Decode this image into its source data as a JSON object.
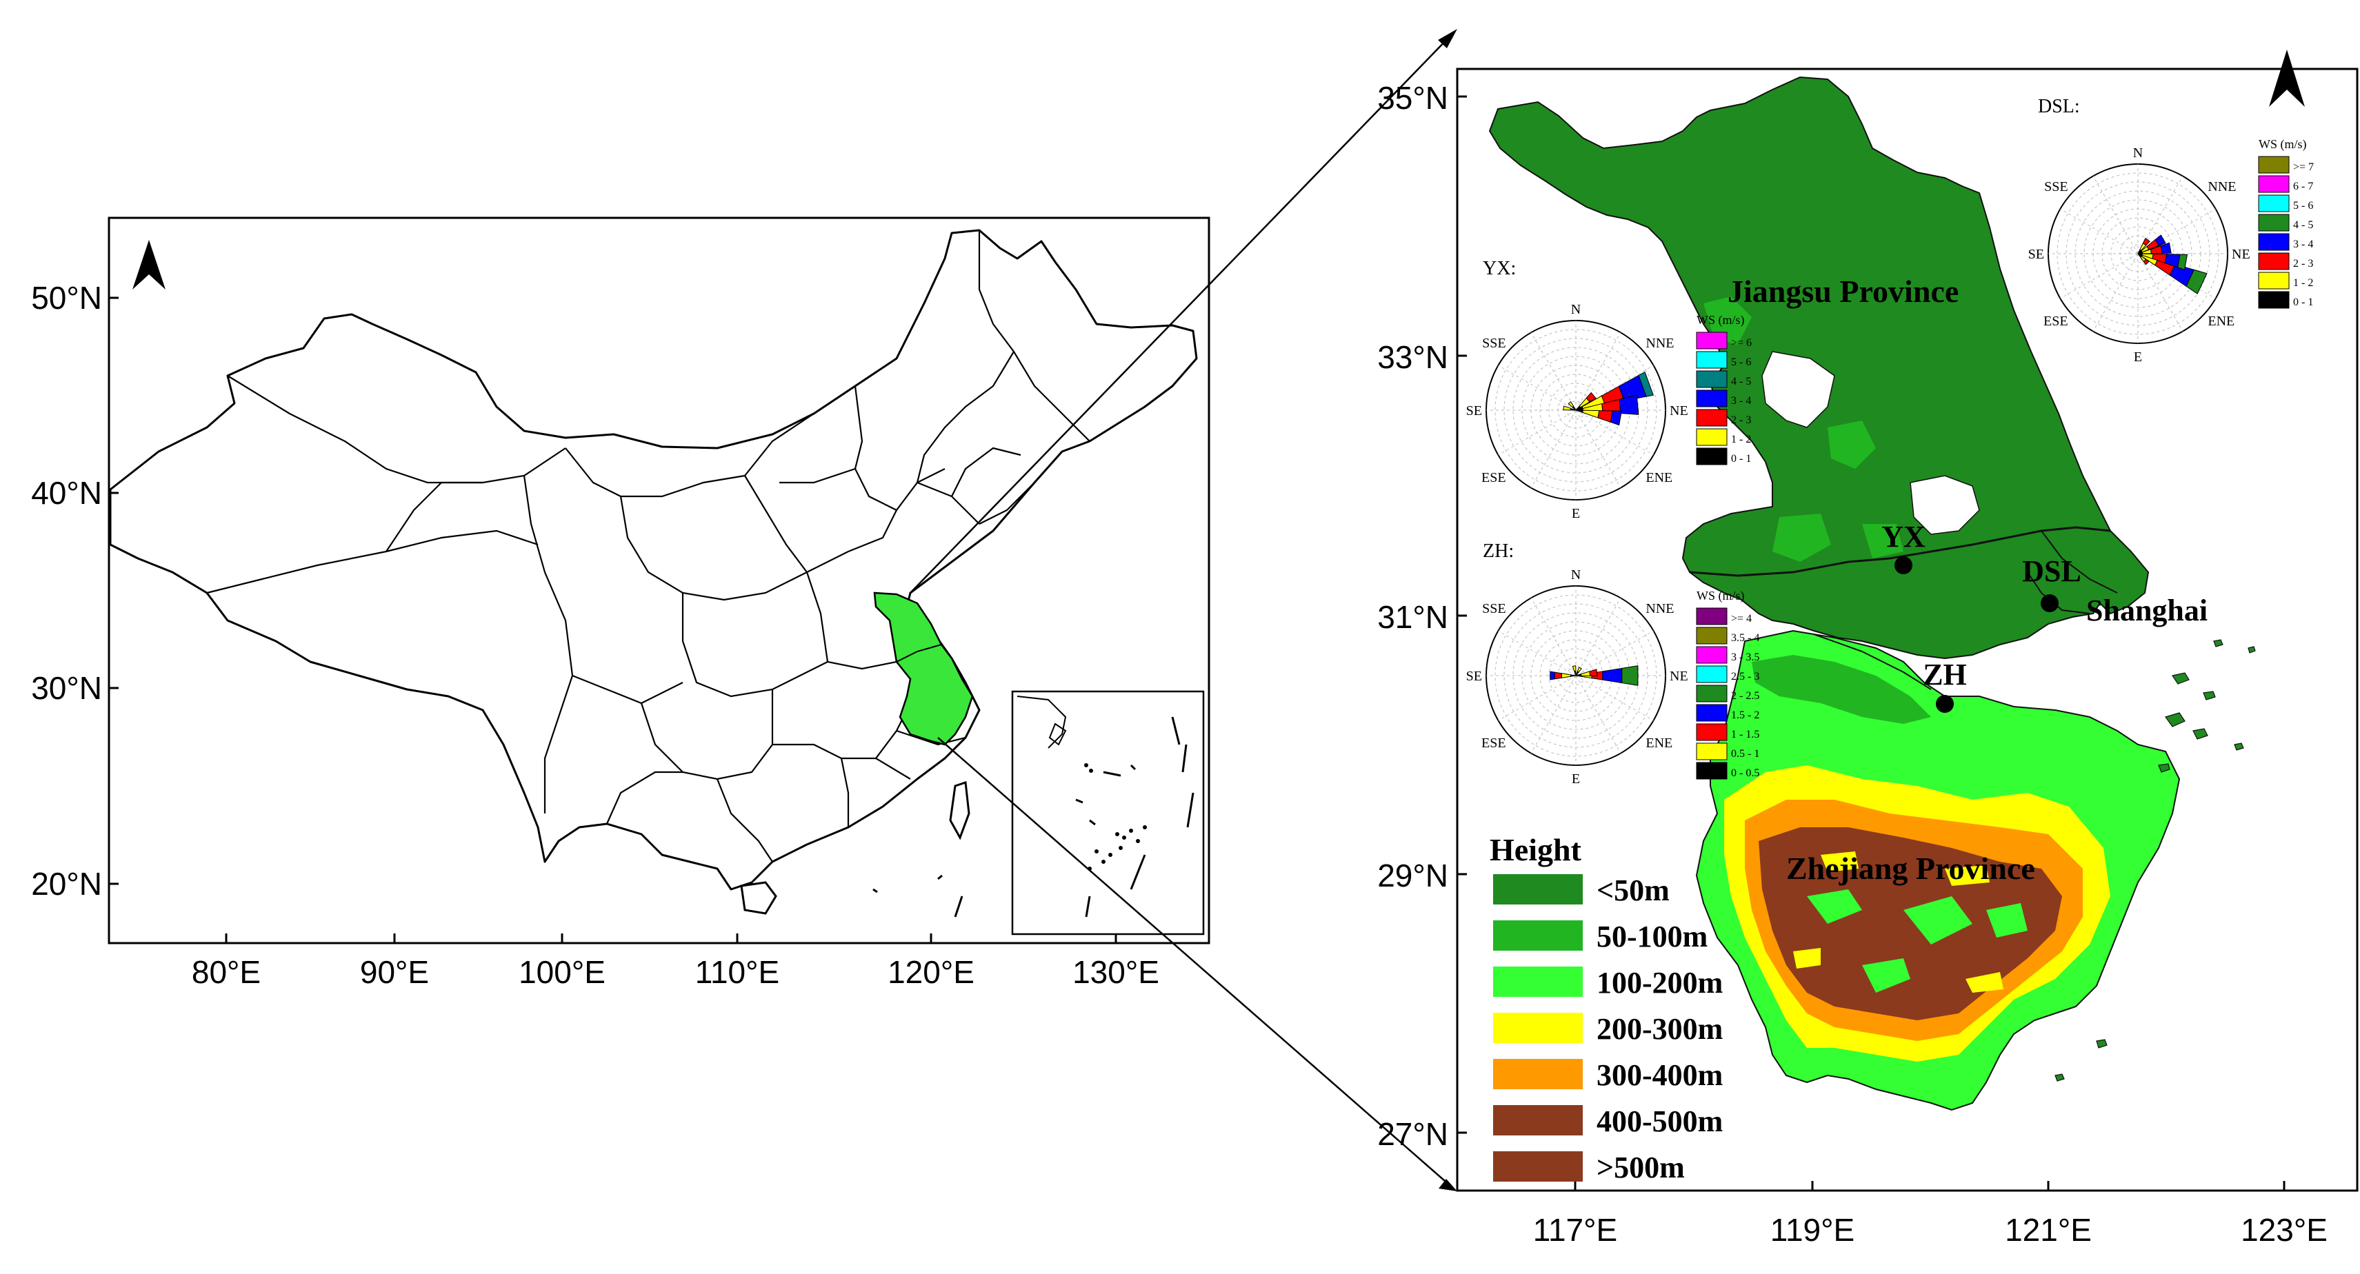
{
  "left_map": {
    "lat_labels": [
      "50°N",
      "40°N",
      "30°N",
      "20°N"
    ],
    "lon_labels": [
      "80°E",
      "90°E",
      "100°E",
      "110°E",
      "120°E",
      "130°E"
    ],
    "highlight_color": "#39e639"
  },
  "right_map": {
    "lat_labels": [
      "35°N",
      "33°N",
      "31°N",
      "29°N",
      "27°N"
    ],
    "lon_labels": [
      "117°E",
      "119°E",
      "121°E",
      "123°E"
    ],
    "provinces": {
      "jiangsu": "Jiangsu Province",
      "zhejiang": "Zhejiang Province",
      "shanghai": "Shanghai"
    },
    "stations": [
      "YX",
      "DSL",
      "ZH"
    ]
  },
  "legend": {
    "title": "Height",
    "items": [
      {
        "label": "<50m",
        "color": "#1f8a1f"
      },
      {
        "label": "50-100m",
        "color": "#22b522"
      },
      {
        "label": "100-200m",
        "color": "#33ff33"
      },
      {
        "label": "200-300m",
        "color": "#ffff00"
      },
      {
        "label": "300-400m",
        "color": "#ff9900"
      },
      {
        "label": "400-500m",
        "color": "#8b3a1e"
      },
      {
        "label": ">500m",
        "color": "#8b3a1e"
      }
    ]
  },
  "roses": {
    "yx": {
      "title": "YX:",
      "dirs": [
        "N",
        "NNE",
        "NE",
        "ENE",
        "E",
        "ESE",
        "SE",
        "SSE"
      ],
      "ws_title": "WS (m/s)",
      "ws_items": [
        {
          "label": ">= 6",
          "color": "#ff00ff"
        },
        {
          "label": "5 - 6",
          "color": "#00ffff"
        },
        {
          "label": "4 - 5",
          "color": "#008080"
        },
        {
          "label": "3 - 4",
          "color": "#0000ff"
        },
        {
          "label": "2 - 3",
          "color": "#ff0000"
        },
        {
          "label": "1 - 2",
          "color": "#ffff00"
        },
        {
          "label": "0 - 1",
          "color": "#000000"
        }
      ]
    },
    "zh": {
      "title": "ZH:",
      "dirs": [
        "N",
        "NNE",
        "NE",
        "ENE",
        "E",
        "ESE",
        "SE",
        "SSE"
      ],
      "ws_title": "WS (m/s)",
      "ws_items": [
        {
          "label": ">= 4",
          "color": "#800080"
        },
        {
          "label": "3.5 - 4",
          "color": "#808000"
        },
        {
          "label": "3 - 3.5",
          "color": "#ff00ff"
        },
        {
          "label": "2.5 - 3",
          "color": "#00ffff"
        },
        {
          "label": "2 - 2.5",
          "color": "#1f8a1f"
        },
        {
          "label": "1.5 - 2",
          "color": "#0000ff"
        },
        {
          "label": "1 - 1.5",
          "color": "#ff0000"
        },
        {
          "label": "0.5 - 1",
          "color": "#ffff00"
        },
        {
          "label": "0 - 0.5",
          "color": "#000000"
        }
      ]
    },
    "dsl": {
      "title": "DSL:",
      "dirs": [
        "N",
        "NNE",
        "NE",
        "ENE",
        "E",
        "ESE",
        "SE",
        "SSE"
      ],
      "ws_title": "WS (m/s)",
      "ws_items": [
        {
          "label": ">= 7",
          "color": "#808000"
        },
        {
          "label": "6 - 7",
          "color": "#ff00ff"
        },
        {
          "label": "5 - 6",
          "color": "#00ffff"
        },
        {
          "label": "4 - 5",
          "color": "#1f8a1f"
        },
        {
          "label": "3 - 4",
          "color": "#0000ff"
        },
        {
          "label": "2 - 3",
          "color": "#ff0000"
        },
        {
          "label": "1 - 2",
          "color": "#ffff00"
        },
        {
          "label": "0 - 1",
          "color": "#000000"
        }
      ]
    }
  }
}
